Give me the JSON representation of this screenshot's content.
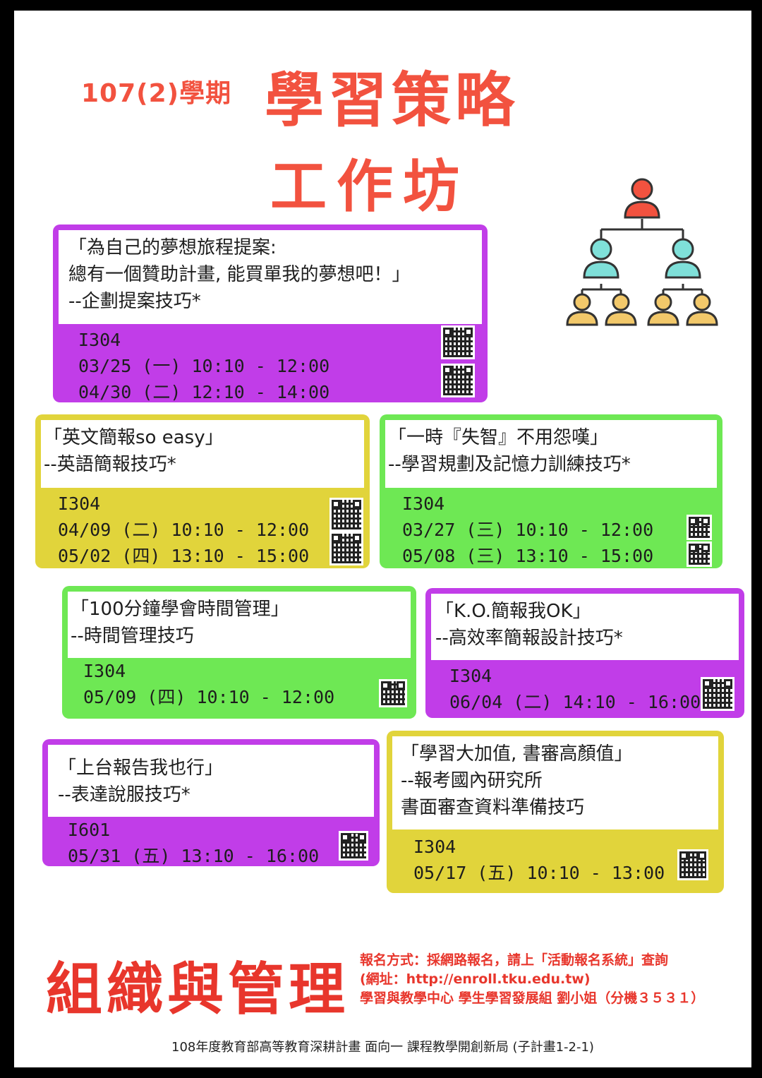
{
  "header": {
    "semester": "107(2)學期",
    "title_line1": "學習策略",
    "title_line2": "工作坊"
  },
  "colors": {
    "accent": "#f2523f",
    "purple": "#c13de8",
    "yellow": "#e1d43b",
    "green": "#6ee854"
  },
  "workshops": [
    {
      "title_lines": [
        "「為自己的夢想旅程提案:",
        "總有一個贊助計畫, 能買單我的夢想吧！」",
        " --企劃提案技巧*"
      ],
      "room": "I304",
      "sessions": [
        "03/25 (一) 10:10 - 12:00",
        "04/30 (二) 12:10 - 14:00"
      ]
    },
    {
      "title_lines": [
        "「英文簡報so easy」",
        " --英語簡報技巧*"
      ],
      "room": "I304",
      "sessions": [
        "04/09 (二) 10:10 - 12:00",
        "05/02 (四) 13:10 - 15:00"
      ]
    },
    {
      "title_lines": [
        "「一時『失智』不用怨嘆」",
        "--學習規劃及記憶力訓練技巧*"
      ],
      "room": "I304",
      "sessions": [
        "03/27 (三) 10:10 - 12:00",
        "05/08 (三) 13:10 - 15:00"
      ]
    },
    {
      "title_lines": [
        "「100分鐘學會時間管理」",
        "--時間管理技巧"
      ],
      "room": "I304",
      "sessions": [
        "05/09 (四) 10:10 - 12:00"
      ]
    },
    {
      "title_lines": [
        "「K.O.簡報我OK」",
        "--高效率簡報設計技巧*"
      ],
      "room": "I304",
      "sessions": [
        "06/04 (二) 14:10 - 16:00"
      ]
    },
    {
      "title_lines": [
        "「上台報告我也行」",
        "--表達說服技巧*"
      ],
      "room": "I601",
      "sessions": [
        "05/31 (五) 13:10 - 16:00"
      ]
    },
    {
      "title_lines": [
        "「學習大加值, 書審高顏值」",
        "--報考國內研究所",
        "書面審查資料準備技巧"
      ],
      "room": "I304",
      "sessions": [
        "05/17 (五) 10:10 - 13:00"
      ]
    }
  ],
  "footer": {
    "org": "組織與管理",
    "registration_line1": "報名方式：採網路報名，請上「活動報名系統」查詢",
    "registration_line2": "(網址：http://enroll.tku.edu.tw)",
    "contact": "學習與教學中心 學生學習發展組 劉小姐（分機３５３１）",
    "funding": "108年度教育部高等教育深耕計畫 面向一 課程教學開創新局 (子計畫1-2-1)"
  },
  "icons": {
    "org_chart": "org-chart-icon",
    "qr": "qr-code-icon"
  }
}
